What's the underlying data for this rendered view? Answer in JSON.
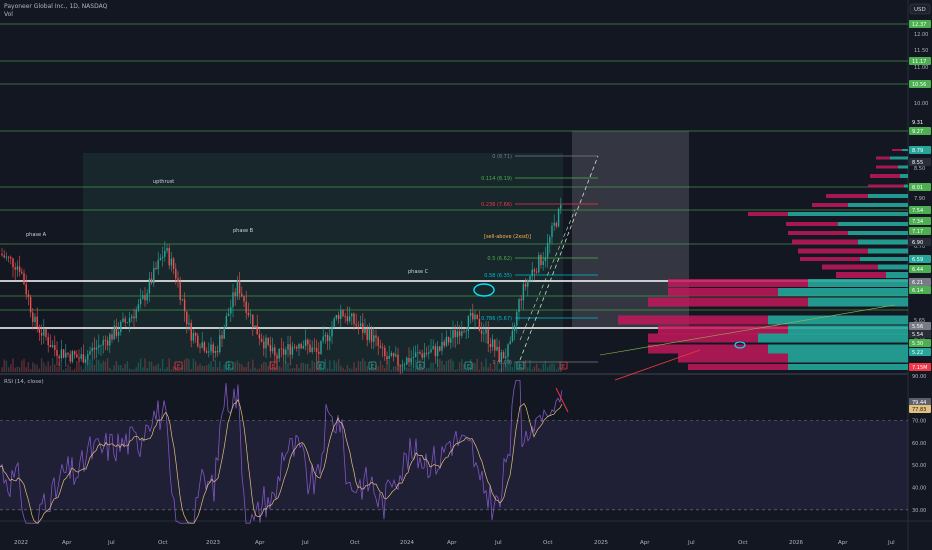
{
  "header": {
    "symbol_title": "Payoneer Global Inc., 1D, NASDAQ",
    "vol_label": "Vol",
    "currency_button": "USD"
  },
  "price_scale": {
    "ticks": [
      "12.00",
      "11.50",
      "11.00",
      "10.50",
      "10.00",
      "9.50",
      "8.50",
      "7.90",
      "6.70",
      "6.20",
      "5.90",
      "5.65",
      "5.40"
    ],
    "tags": [
      {
        "label": "12.37",
        "color": "#4caf50"
      },
      {
        "label": "11.17",
        "color": "#4caf50"
      },
      {
        "label": "10.56",
        "color": "#4caf50"
      },
      {
        "label": "9.31",
        "color": "#131722"
      },
      {
        "label": "9.27",
        "color": "#4caf50"
      },
      {
        "label": "8.79",
        "color": "#26a69a"
      },
      {
        "label": "8.55",
        "color": "#2a2e39"
      },
      {
        "label": "8.01",
        "color": "#4caf50"
      },
      {
        "label": "7.54",
        "color": "#4caf50"
      },
      {
        "label": "7.34",
        "color": "#4caf50"
      },
      {
        "label": "7.17",
        "color": "#4caf50"
      },
      {
        "label": "6.90",
        "color": "#2a2e39"
      },
      {
        "label": "6.59",
        "color": "#26a69a"
      },
      {
        "label": "6.44",
        "color": "#4caf50"
      },
      {
        "label": "6.21",
        "color": "#787b86"
      },
      {
        "label": "6.14",
        "color": "#4caf50"
      },
      {
        "label": "5.56",
        "color": "#787b86"
      },
      {
        "label": "5.54",
        "color": "#2a2e39"
      },
      {
        "label": "5.30",
        "color": "#4caf50"
      },
      {
        "label": "5.22",
        "color": "#26a69a"
      },
      {
        "label": "7.15M",
        "color": "#f23645"
      }
    ]
  },
  "fib_levels": [
    {
      "label": "0 (8.71)",
      "color": "#787b86"
    },
    {
      "label": "0.114 (8.19)",
      "color": "#4caf50"
    },
    {
      "label": "0.236 (7.66)",
      "color": "#f23645"
    },
    {
      "label": "0.5 (6.62)",
      "color": "#4caf50"
    },
    {
      "label": "0.58 (6.35)",
      "color": "#00bcd4"
    },
    {
      "label": "0.786 (5.67)",
      "color": "#00bcd4"
    },
    {
      "label": "1 (5.09)",
      "color": "#787b86"
    }
  ],
  "annotations": {
    "phase_a": "phase A",
    "phase_b": "phase B",
    "phase_c": "phase C",
    "upthrust": "upthrust",
    "highlight": "[sell-above (2xsd)]"
  },
  "rsi": {
    "label": "RSI (14, close)",
    "ticks": [
      "90.00",
      "70.00",
      "60.00",
      "50.00",
      "40.00",
      "30.00"
    ],
    "value_tags": [
      "79.44",
      "77.83"
    ],
    "upper": 70,
    "lower": 30
  },
  "time_axis": {
    "labels": [
      "2022",
      "Apr",
      "Jul",
      "Oct",
      "2023",
      "Apr",
      "Jul",
      "Oct",
      "2024",
      "Apr",
      "Jul",
      "Oct",
      "2025",
      "Apr",
      "Jul",
      "Oct",
      "2026",
      "Apr",
      "Jul"
    ]
  },
  "colors": {
    "background": "#131722",
    "up": "#26a69a",
    "down": "#ef5350",
    "rsi_line": "#7e57c2",
    "rsi_ma": "#e5c07b",
    "vp_up": "#26a69a",
    "vp_down": "#c2185b"
  }
}
